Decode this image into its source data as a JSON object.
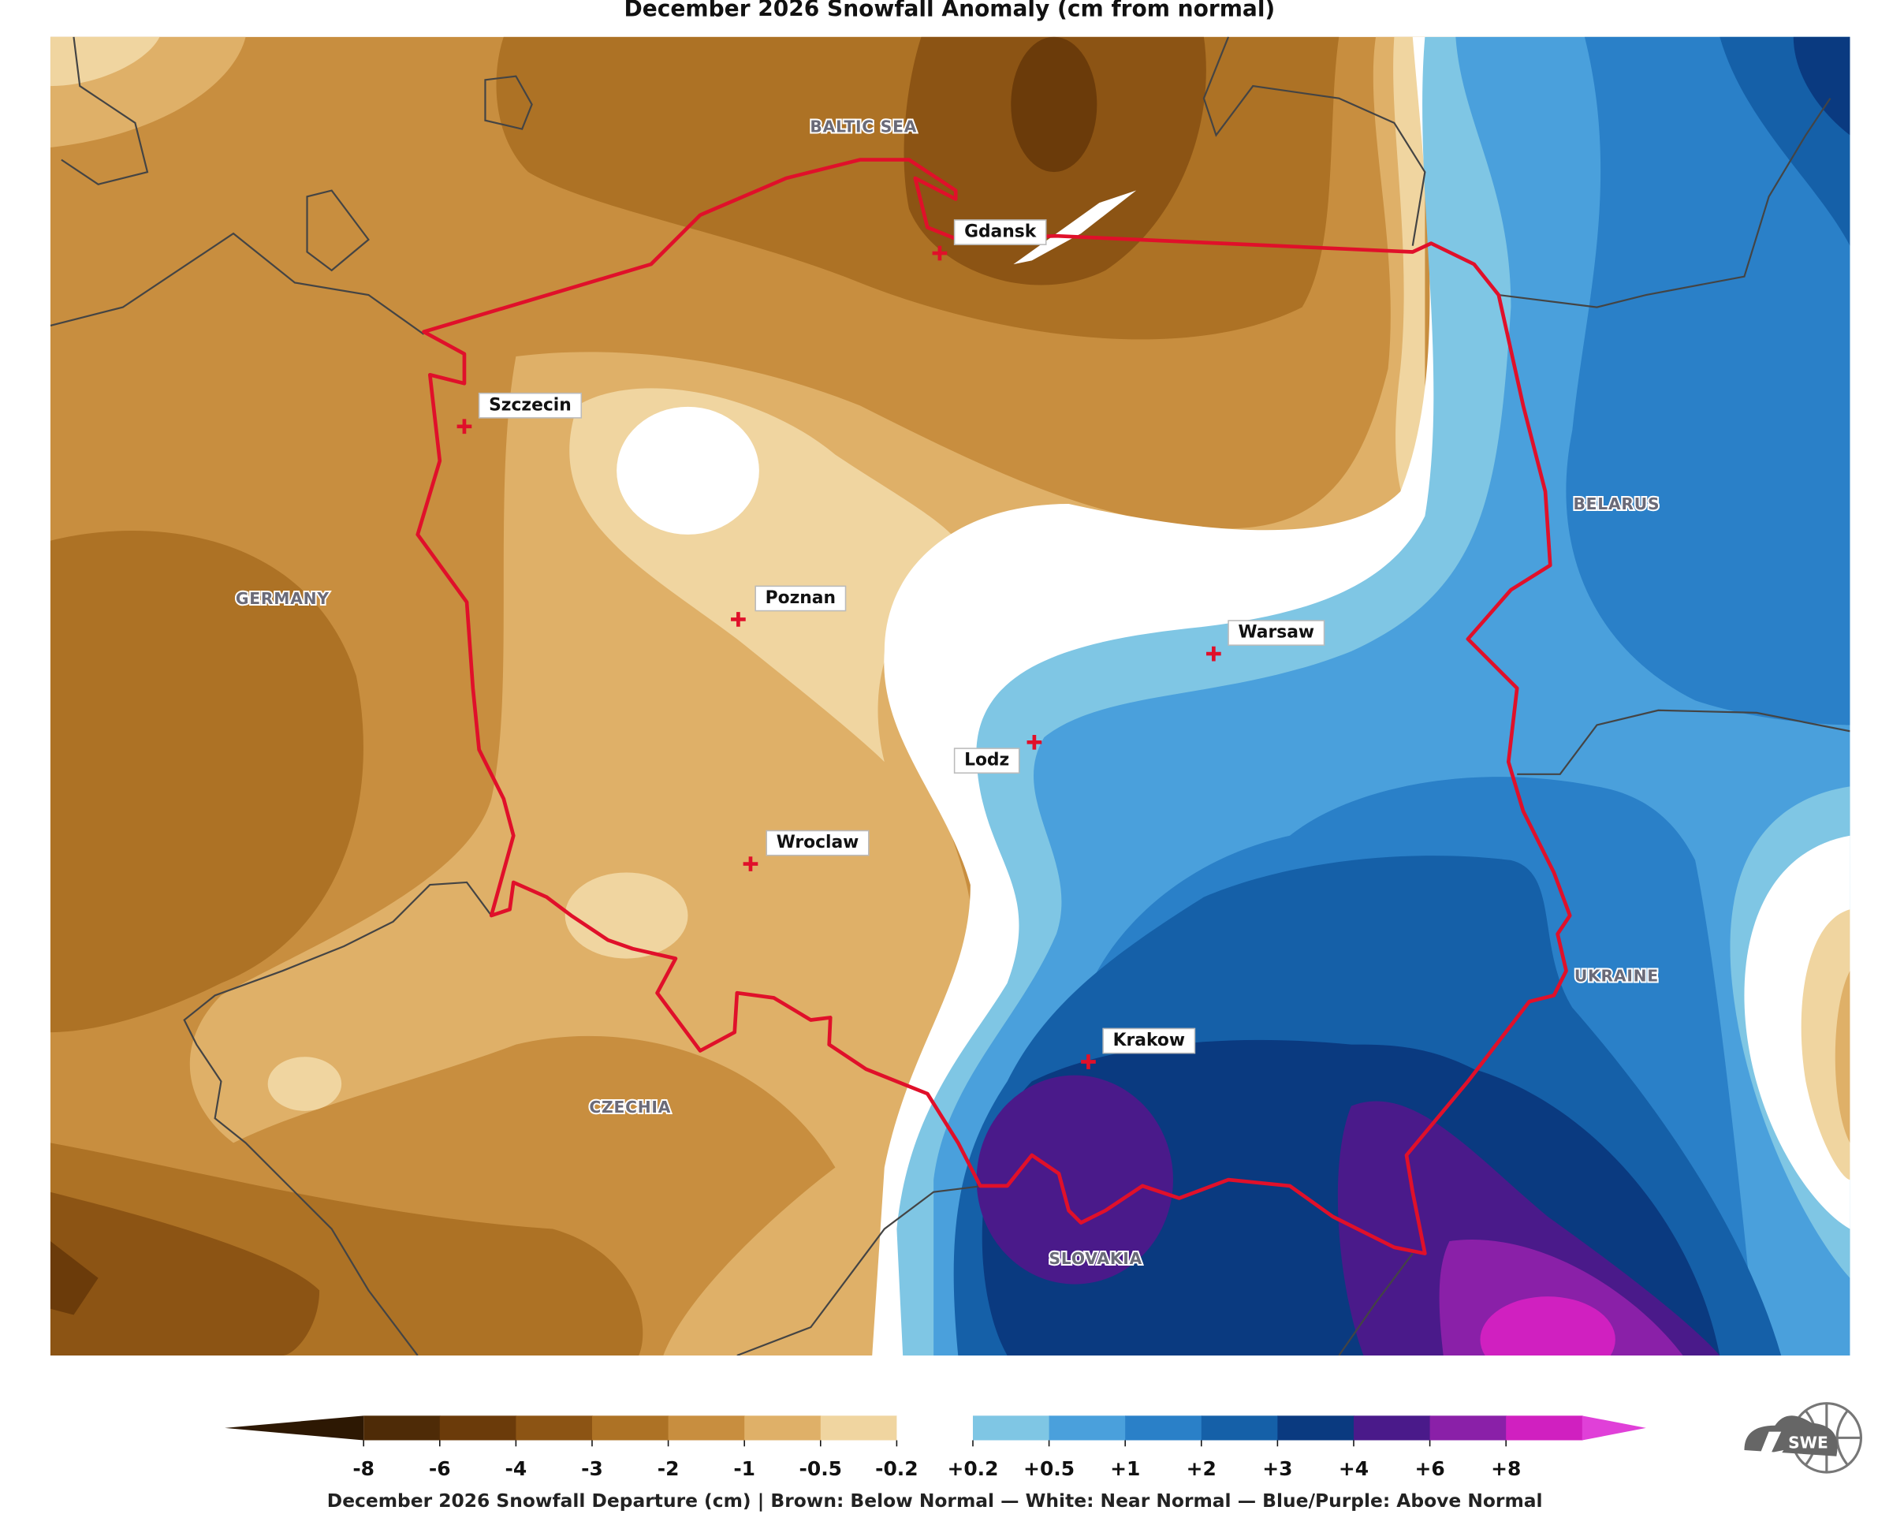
{
  "title": "December 2026 Snowfall Anomaly (cm from normal)",
  "map": {
    "places": [
      {
        "name": "BALTIC SEA"
      },
      {
        "name": "GERMANY"
      },
      {
        "name": "BELARUS"
      },
      {
        "name": "UKRAINE"
      },
      {
        "name": "CZECHIA"
      },
      {
        "name": "SLOVAKIA"
      }
    ],
    "cities": [
      {
        "name": "Gdansk"
      },
      {
        "name": "Szczecin"
      },
      {
        "name": "Poznan"
      },
      {
        "name": "Warsaw"
      },
      {
        "name": "Lodz"
      },
      {
        "name": "Wroclaw"
      },
      {
        "name": "Krakow"
      }
    ]
  },
  "colorbar": {
    "colors": [
      "#2d1803",
      "#4e2b07",
      "#6b3b0a",
      "#8c5414",
      "#ad7225",
      "#c88e3f",
      "#dfb068",
      "#f0d5a0",
      "#ffffff",
      "#7fc6e4",
      "#4aa0dc",
      "#2a80c8",
      "#1560a8",
      "#0a3a80",
      "#4a1a8a",
      "#8a20a8",
      "#d020c0",
      "#e040d8"
    ],
    "ticks": [
      -8,
      -6,
      -4,
      -3,
      -2,
      -1,
      -0.5,
      -0.2,
      {
        "value": 0.2,
        "label": "+0.2"
      },
      {
        "value": 0.5,
        "label": "+0.5"
      },
      {
        "value": 1,
        "label": "+1"
      },
      {
        "value": 2,
        "label": "+2"
      },
      {
        "value": 3,
        "label": "+3"
      },
      {
        "value": 4,
        "label": "+4"
      },
      {
        "value": 6,
        "label": "+6"
      },
      {
        "value": 8,
        "label": "+8"
      }
    ]
  },
  "caption": "December 2026 Snowfall Departure (cm)  |  Brown: Below Normal  —  White: Near Normal  —  Blue/Purple: Above Normal",
  "logo": {
    "text": "SWE"
  }
}
